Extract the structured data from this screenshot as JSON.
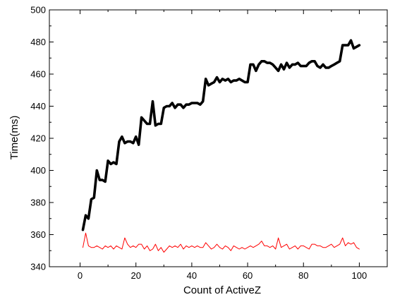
{
  "chart_data": {
    "type": "line",
    "title": "",
    "xlabel": "Count of ActiveZ",
    "ylabel": "Time(ms)",
    "xlim": [
      -11,
      110
    ],
    "ylim": [
      340,
      500
    ],
    "xticks": [
      0,
      20,
      40,
      60,
      80,
      100
    ],
    "yticks": [
      340,
      360,
      380,
      400,
      420,
      440,
      460,
      480,
      500
    ],
    "grid": false,
    "legend": "none",
    "series": [
      {
        "color": "#000000",
        "line_width": "thick",
        "x": [
          1,
          2,
          3,
          4,
          5,
          6,
          7,
          8,
          9,
          10,
          11,
          12,
          13,
          14,
          15,
          16,
          17,
          18,
          19,
          20,
          21,
          22,
          23,
          24,
          25,
          26,
          27,
          28,
          29,
          30,
          31,
          32,
          33,
          34,
          35,
          36,
          37,
          38,
          39,
          40,
          41,
          42,
          43,
          44,
          45,
          46,
          47,
          48,
          49,
          50,
          51,
          52,
          53,
          54,
          55,
          56,
          57,
          58,
          59,
          60,
          61,
          62,
          63,
          64,
          65,
          66,
          67,
          68,
          69,
          70,
          71,
          72,
          73,
          74,
          75,
          76,
          77,
          78,
          79,
          80,
          81,
          82,
          83,
          84,
          85,
          86,
          87,
          88,
          89,
          90,
          91,
          92,
          93,
          94,
          95,
          96,
          97,
          98,
          99,
          100
        ],
        "y": [
          363,
          372,
          370,
          382,
          383,
          400,
          394,
          394,
          393,
          406,
          404,
          405,
          404,
          418,
          421,
          417,
          418,
          418,
          417,
          421,
          416,
          433,
          431,
          429,
          429,
          443,
          428,
          429,
          429,
          439,
          440,
          440,
          442,
          439,
          441,
          441,
          439,
          441,
          441,
          442,
          442,
          442,
          441,
          443,
          457,
          453,
          454,
          455,
          458,
          455,
          457,
          456,
          457,
          455,
          456,
          456,
          457,
          456,
          455,
          455,
          466,
          466,
          462,
          466,
          468,
          468,
          467,
          467,
          466,
          464,
          462,
          466,
          463,
          467,
          464,
          466,
          466,
          467,
          465,
          465,
          465,
          467,
          468,
          468,
          465,
          464,
          466,
          464,
          464,
          465,
          466,
          467,
          468,
          478,
          478,
          478,
          481,
          476,
          477,
          478
        ]
      },
      {
        "color": "#ff0000",
        "line_width": "thin",
        "x": [
          1,
          2,
          3,
          4,
          5,
          6,
          7,
          8,
          9,
          10,
          11,
          12,
          13,
          14,
          15,
          16,
          17,
          18,
          19,
          20,
          21,
          22,
          23,
          24,
          25,
          26,
          27,
          28,
          29,
          30,
          31,
          32,
          33,
          34,
          35,
          36,
          37,
          38,
          39,
          40,
          41,
          42,
          43,
          44,
          45,
          46,
          47,
          48,
          49,
          50,
          51,
          52,
          53,
          54,
          55,
          56,
          57,
          58,
          59,
          60,
          61,
          62,
          63,
          64,
          65,
          66,
          67,
          68,
          69,
          70,
          71,
          72,
          73,
          74,
          75,
          76,
          77,
          78,
          79,
          80,
          81,
          82,
          83,
          84,
          85,
          86,
          87,
          88,
          89,
          90,
          91,
          92,
          93,
          94,
          95,
          96,
          97,
          98,
          99,
          100
        ],
        "y": [
          352,
          361,
          353,
          352,
          352,
          353,
          352,
          351,
          353,
          352,
          353,
          351,
          353,
          352,
          351,
          358,
          354,
          352,
          353,
          352,
          354,
          354,
          351,
          353,
          350,
          351,
          354,
          350,
          352,
          349,
          351,
          353,
          352,
          353,
          352,
          354,
          351,
          353,
          352,
          353,
          352,
          353,
          352,
          352,
          355,
          353,
          351,
          352,
          354,
          352,
          351,
          353,
          352,
          350,
          353,
          352,
          351,
          352,
          351,
          352,
          353,
          352,
          353,
          354,
          356,
          353,
          353,
          352,
          353,
          351,
          358,
          352,
          353,
          354,
          351,
          352,
          353,
          351,
          353,
          353,
          352,
          351,
          354,
          354,
          353,
          353,
          352,
          352,
          353,
          354,
          352,
          353,
          354,
          358,
          353,
          355,
          354,
          355,
          352,
          351
        ]
      }
    ]
  }
}
